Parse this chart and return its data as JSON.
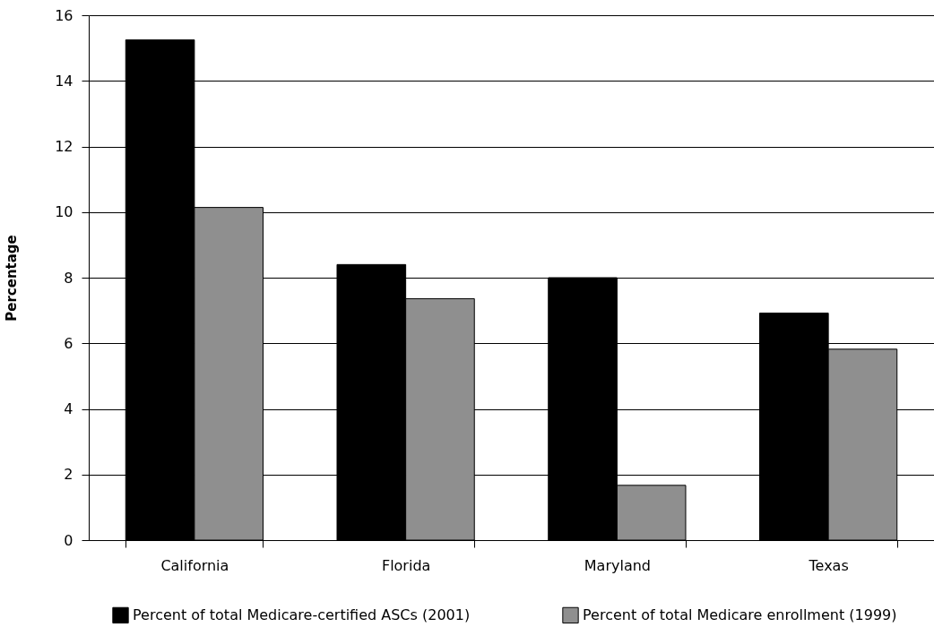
{
  "chart_data": {
    "type": "bar",
    "ylabel": "Percentage",
    "categories": [
      "California",
      "Florida",
      "Maryland",
      "Texas"
    ],
    "series": [
      {
        "name": "Percent of total Medicare-certified ASCs (2001)",
        "color": "#000000",
        "values": [
          15.25,
          8.4,
          8.0,
          6.92
        ]
      },
      {
        "name": "Percent of total Medicare enrollment (1999)",
        "color": "#8f8f8f",
        "values": [
          10.14,
          7.36,
          1.67,
          5.82
        ]
      }
    ],
    "ylim": [
      0,
      16
    ],
    "yticks": [
      0,
      2,
      4,
      6,
      8,
      10,
      12,
      14,
      16
    ],
    "grid": "y",
    "legend": "bottom"
  }
}
